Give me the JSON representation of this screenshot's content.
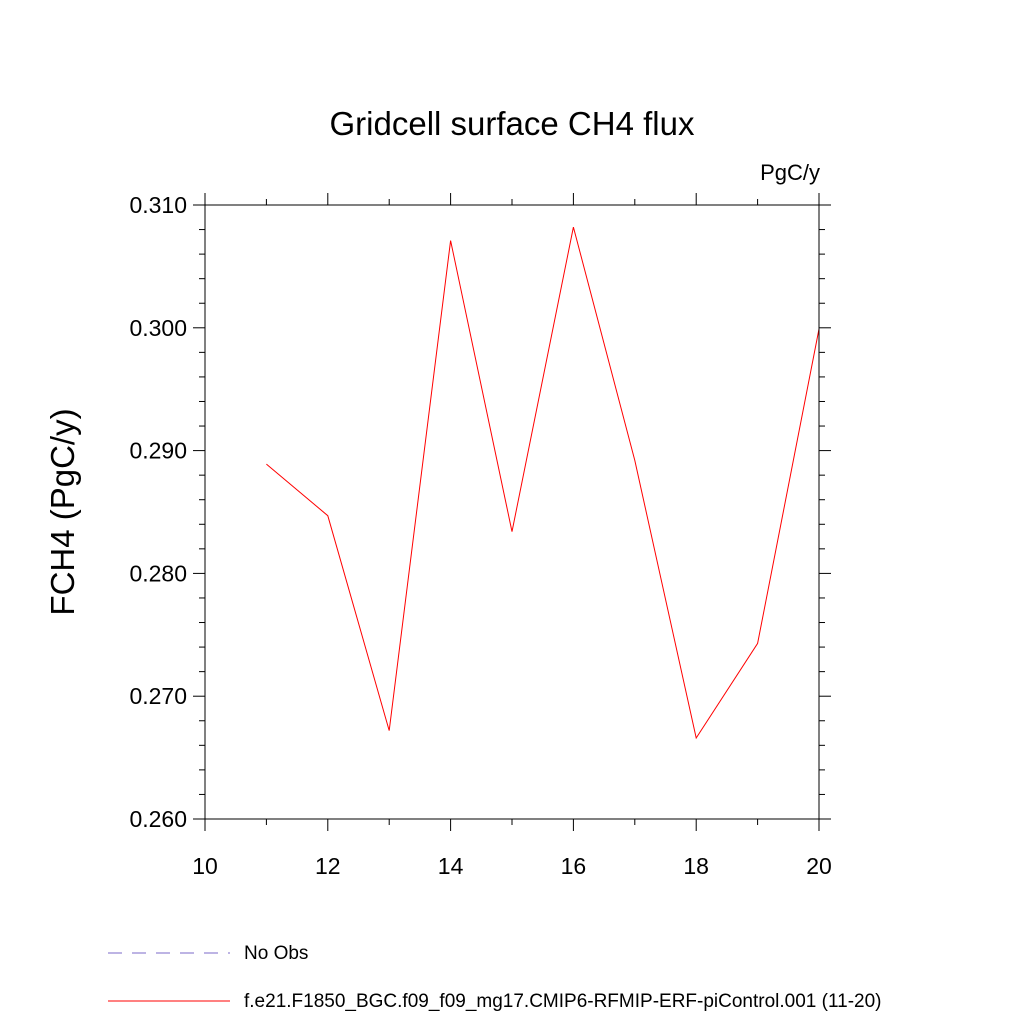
{
  "chart_data": {
    "type": "line",
    "title": "Gridcell surface CH4 flux",
    "units_label": "PgC/y",
    "ylabel": "FCH4  (PgC/y)",
    "xlabel": "",
    "xlim": [
      10,
      20
    ],
    "ylim": [
      0.26,
      0.31
    ],
    "x_ticks": [
      10,
      12,
      14,
      16,
      18,
      20
    ],
    "y_ticks": [
      0.26,
      0.27,
      0.28,
      0.29,
      0.3,
      0.31
    ],
    "x_tick_labels": [
      "10",
      "12",
      "14",
      "16",
      "18",
      "20"
    ],
    "y_tick_labels": [
      "0.260",
      "0.270",
      "0.280",
      "0.290",
      "0.300",
      "0.310"
    ],
    "grid": false,
    "legend_position": "bottom",
    "series": [
      {
        "name": "f.e21.F1850_BGC.f09_f09_mg17.CMIP6-RFMIP-ERF-piControl.001 (11-20)",
        "color": "#ff0000",
        "style": "solid",
        "x": [
          11,
          12,
          13,
          14,
          15,
          16,
          17,
          18,
          19,
          20
        ],
        "values": [
          0.2889,
          0.2847,
          0.2672,
          0.3071,
          0.2834,
          0.3082,
          0.2892,
          0.2666,
          0.2743,
          0.2999
        ]
      }
    ],
    "legend": [
      {
        "label": "No Obs",
        "color": "#7b68c8",
        "style": "dashed"
      },
      {
        "label": "f.e21.F1850_BGC.f09_f09_mg17.CMIP6-RFMIP-ERF-piControl.001 (11-20)",
        "color": "#ff0000",
        "style": "solid"
      }
    ]
  }
}
